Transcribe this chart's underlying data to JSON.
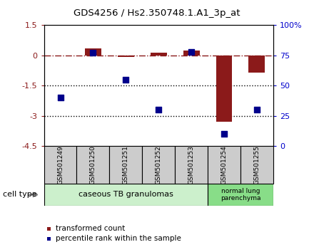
{
  "title": "GDS4256 / Hs2.350748.1.A1_3p_at",
  "samples": [
    "GSM501249",
    "GSM501250",
    "GSM501251",
    "GSM501252",
    "GSM501253",
    "GSM501254",
    "GSM501255"
  ],
  "red_bar_values": [
    -0.02,
    0.35,
    -0.08,
    0.12,
    0.25,
    -3.3,
    -0.85
  ],
  "blue_ranks": [
    40,
    77,
    55,
    30,
    78,
    10,
    30
  ],
  "group1_count": 5,
  "group2_count": 2,
  "group1_label": "caseous TB granulomas",
  "group2_label": "normal lung\nparenchyma",
  "cell_type_label": "cell type",
  "ylim_left": [
    -4.5,
    1.5
  ],
  "yticks_left": [
    1.5,
    0,
    -1.5,
    -3,
    -4.5
  ],
  "ylim_right": [
    0,
    100
  ],
  "yticks_right": [
    100,
    75,
    50,
    25,
    0
  ],
  "ytick_right_labels": [
    "100%",
    "75",
    "50",
    "25",
    "0"
  ],
  "bar_color": "#8B1A1A",
  "dot_color": "#00008B",
  "hline_color": "#8B1A1A",
  "dotted_lines": [
    -1.5,
    -3
  ],
  "legend_bar_label": "transformed count",
  "legend_dot_label": "percentile rank within the sample",
  "group1_bg": "#ccf0cc",
  "group2_bg": "#88dd88",
  "sample_bg": "#cccccc",
  "bar_width": 0.5,
  "dot_size": 40
}
